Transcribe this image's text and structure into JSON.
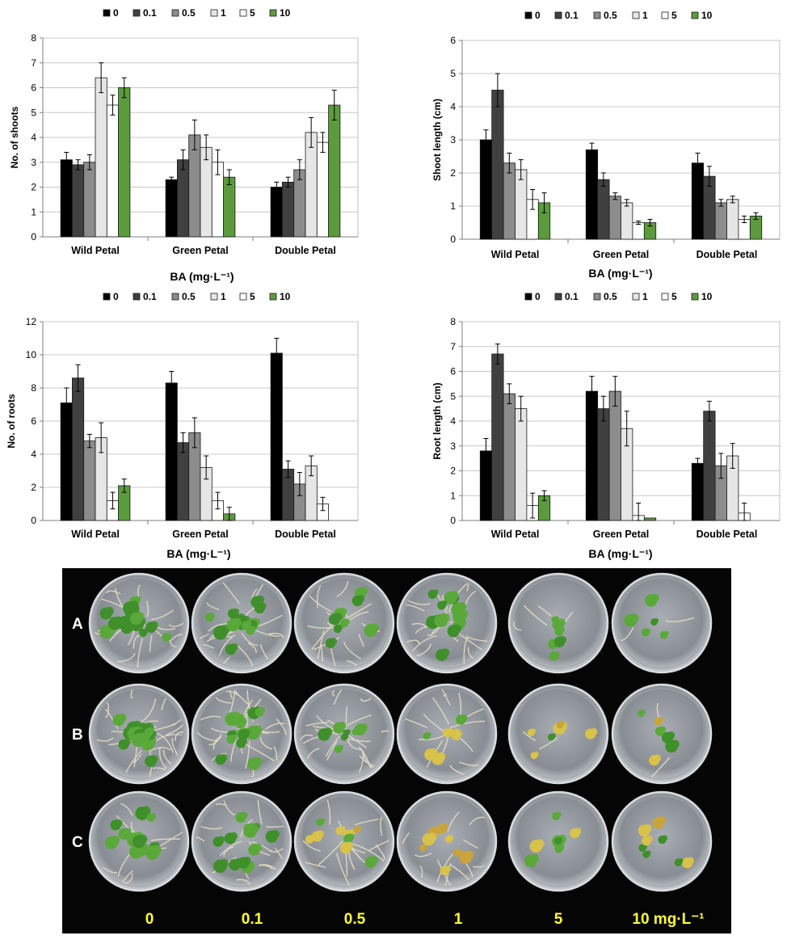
{
  "colors": {
    "treatments": [
      "#000000",
      "#404040",
      "#8c8c8c",
      "#e6e6e6",
      "#ffffff",
      "#5b9b3c"
    ],
    "grid": "#c8c8c8",
    "axis": "#7f7f7f",
    "photo_label": "#ffff33",
    "row_label": "#ffffff"
  },
  "legend_labels": [
    "0",
    "0.1",
    "0.5",
    "1",
    "5",
    "10"
  ],
  "chart_data": [
    {
      "type": "bar",
      "xlabel": "BA (mg·L⁻¹)",
      "ylabel": "No. of shoots",
      "ylim": [
        0,
        8
      ],
      "yticks": [
        "0",
        "1",
        "2",
        "3",
        "4",
        "5",
        "6",
        "7",
        "8"
      ],
      "grid": true,
      "legend": "top",
      "categories": [
        "Wild Petal",
        "Green Petal",
        "Double Petal"
      ],
      "series": [
        {
          "name": "0",
          "values": [
            3.1,
            2.3,
            2.0
          ],
          "errors": [
            0.3,
            0.1,
            0.2
          ]
        },
        {
          "name": "0.1",
          "values": [
            2.9,
            3.1,
            2.2
          ],
          "errors": [
            0.2,
            0.4,
            0.2
          ]
        },
        {
          "name": "0.5",
          "values": [
            3.0,
            4.1,
            2.7
          ],
          "errors": [
            0.3,
            0.6,
            0.4
          ]
        },
        {
          "name": "1",
          "values": [
            6.4,
            3.6,
            4.2
          ],
          "errors": [
            0.6,
            0.5,
            0.6
          ]
        },
        {
          "name": "5",
          "values": [
            5.3,
            3.0,
            3.8
          ],
          "errors": [
            0.4,
            0.5,
            0.4
          ]
        },
        {
          "name": "10",
          "values": [
            6.0,
            2.4,
            5.3
          ],
          "errors": [
            0.4,
            0.3,
            0.6
          ]
        }
      ]
    },
    {
      "type": "bar",
      "xlabel": "BA (mg·L⁻¹)",
      "ylabel": "Shoot length (cm)",
      "ylim": [
        0,
        6
      ],
      "yticks": [
        "0",
        "1",
        "2",
        "3",
        "4",
        "5",
        "6"
      ],
      "grid": true,
      "legend": "top",
      "categories": [
        "Wild Petal",
        "Green Petal",
        "Double Petal"
      ],
      "series": [
        {
          "name": "0",
          "values": [
            3.0,
            2.7,
            2.3
          ],
          "errors": [
            0.3,
            0.2,
            0.3
          ]
        },
        {
          "name": "0.1",
          "values": [
            4.5,
            1.8,
            1.9
          ],
          "errors": [
            0.5,
            0.2,
            0.3
          ]
        },
        {
          "name": "0.5",
          "values": [
            2.3,
            1.3,
            1.1
          ],
          "errors": [
            0.3,
            0.1,
            0.1
          ]
        },
        {
          "name": "1",
          "values": [
            2.1,
            1.1,
            1.2
          ],
          "errors": [
            0.3,
            0.1,
            0.1
          ]
        },
        {
          "name": "5",
          "values": [
            1.2,
            0.5,
            0.6
          ],
          "errors": [
            0.3,
            0.05,
            0.1
          ]
        },
        {
          "name": "10",
          "values": [
            1.1,
            0.5,
            0.7
          ],
          "errors": [
            0.3,
            0.1,
            0.1
          ]
        }
      ]
    },
    {
      "type": "bar",
      "xlabel": "BA (mg·L⁻¹)",
      "ylabel": "No. of roots",
      "ylim": [
        0,
        12
      ],
      "yticks": [
        "0",
        "2",
        "4",
        "6",
        "8",
        "10",
        "12"
      ],
      "grid": true,
      "legend": "top",
      "categories": [
        "Wild Petal",
        "Green Petal",
        "Double Petal"
      ],
      "series": [
        {
          "name": "0",
          "values": [
            7.1,
            8.3,
            10.1
          ],
          "errors": [
            0.9,
            0.7,
            0.9
          ]
        },
        {
          "name": "0.1",
          "values": [
            8.6,
            4.7,
            3.1
          ],
          "errors": [
            0.8,
            0.6,
            0.5
          ]
        },
        {
          "name": "0.5",
          "values": [
            4.8,
            5.3,
            2.2
          ],
          "errors": [
            0.4,
            0.9,
            0.7
          ]
        },
        {
          "name": "1",
          "values": [
            5.0,
            3.2,
            3.3
          ],
          "errors": [
            0.9,
            0.7,
            0.6
          ]
        },
        {
          "name": "5",
          "values": [
            1.2,
            1.2,
            1.0
          ],
          "errors": [
            0.5,
            0.5,
            0.4
          ]
        },
        {
          "name": "10",
          "values": [
            2.1,
            0.4,
            0
          ],
          "errors": [
            0.4,
            0.4,
            0
          ]
        }
      ]
    },
    {
      "type": "bar",
      "xlabel": "BA (mg·L⁻¹)",
      "ylabel": "Root length (cm)",
      "ylim": [
        0,
        8
      ],
      "yticks": [
        "0",
        "1",
        "2",
        "3",
        "4",
        "5",
        "6",
        "7",
        "8"
      ],
      "grid": true,
      "legend": "top",
      "categories": [
        "Wild Petal",
        "Green Petal",
        "Double Petal"
      ],
      "series": [
        {
          "name": "0",
          "values": [
            2.8,
            5.2,
            2.3
          ],
          "errors": [
            0.5,
            0.6,
            0.2
          ]
        },
        {
          "name": "0.1",
          "values": [
            6.7,
            4.5,
            4.4
          ],
          "errors": [
            0.4,
            0.5,
            0.4
          ]
        },
        {
          "name": "0.5",
          "values": [
            5.1,
            5.2,
            2.2
          ],
          "errors": [
            0.4,
            0.6,
            0.5
          ]
        },
        {
          "name": "1",
          "values": [
            4.5,
            3.7,
            2.6
          ],
          "errors": [
            0.5,
            0.7,
            0.5
          ]
        },
        {
          "name": "5",
          "values": [
            0.6,
            0.2,
            0.3
          ],
          "errors": [
            0.5,
            0.5,
            0.4
          ]
        },
        {
          "name": "10",
          "values": [
            1.0,
            0.1,
            0
          ],
          "errors": [
            0.2,
            0,
            0
          ]
        }
      ]
    }
  ],
  "photo": {
    "row_labels": [
      "A",
      "B",
      "C"
    ],
    "column_labels": [
      "0",
      "0.1",
      "0.5",
      "1",
      "5",
      "10 mg·L⁻¹"
    ]
  }
}
